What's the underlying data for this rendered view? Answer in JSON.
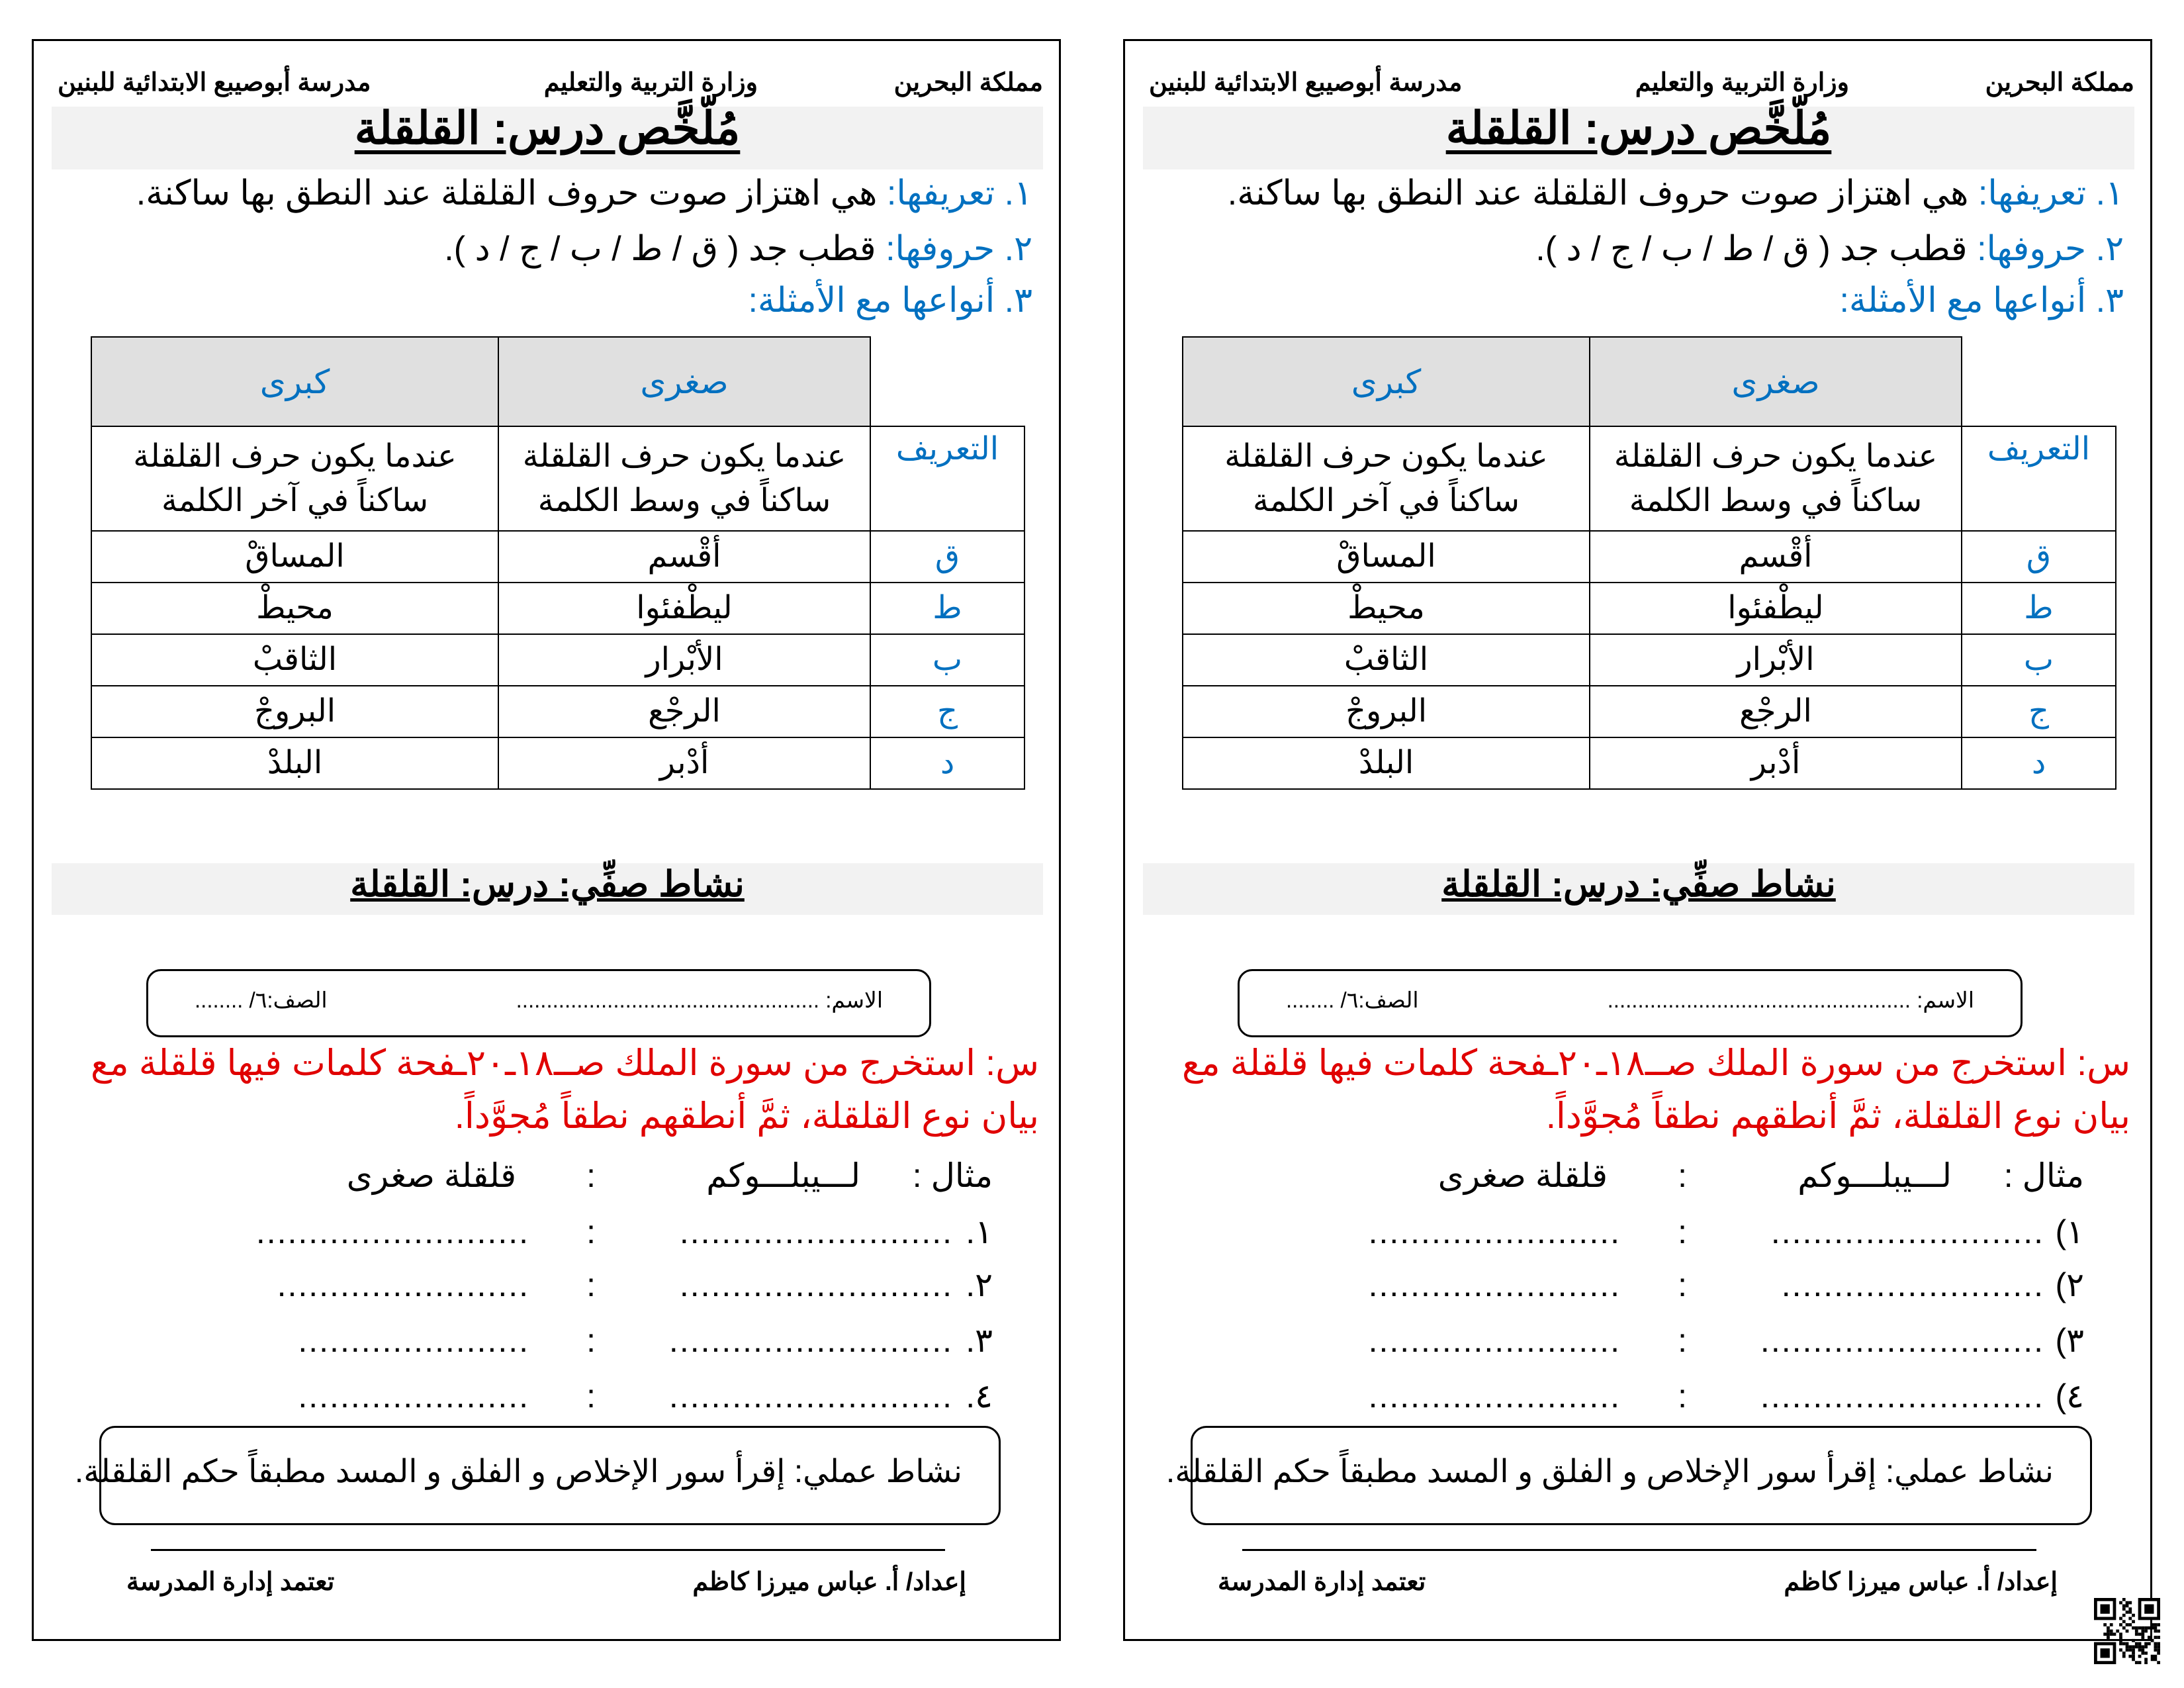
{
  "pages": [
    {
      "header": {
        "kingdom": "مملكة البحرين",
        "ministry": "وزارة التربية والتعليم",
        "school": "مدرسة أبوصيبع الابتدائية للبنين"
      },
      "title": "مُلّخَّص درس: القلقلة",
      "items": [
        {
          "label": "١. تعريفها:",
          "text": " هي اهتزاز صوت حروف القلقلة عند النطق بها ساكنة."
        },
        {
          "label": "٢. حروفها:",
          "text": " قطب جد ( ق / ط / ب / ج / د )."
        },
        {
          "label": "٣. أنواعها مع الأمثلة:",
          "text": ""
        }
      ],
      "table": {
        "headers": [
          "",
          "صغرى",
          "كبرى"
        ],
        "definition": [
          "التعريف",
          "عندما يكون حرف القلقلة ساكناً في وسط الكلمة",
          "عندما يكون حرف القلقلة ساكناً في آخر الكلمة"
        ],
        "rows": [
          [
            "ق",
            "أقْسم",
            "المساقْ"
          ],
          [
            "ط",
            "ليطْفئوا",
            "محيطْ"
          ],
          [
            "ب",
            "الأبْرار",
            "الثاقبْ"
          ],
          [
            "ج",
            "الرجْع",
            "البروجْ"
          ],
          [
            "د",
            "أدْبر",
            "البلدْ"
          ]
        ]
      },
      "activity_title": "نشاط صفِّي: درس: القلقلة",
      "name_box": {
        "name": "الاسم: ..................................................",
        "class": "الصف:٦/ ........"
      },
      "question": [
        "س: استخرج من سورة الملك صــ١٨ـ٢٠ـفحة كلمات فيها قلقلة مع",
        "بيان نوع القلقلة، ثمَّ أنطقهم نطقاً مُجوَّداً."
      ],
      "example": {
        "label": "مثال :",
        "word": "لـــيبلـــوكم",
        "sep": ":",
        "type": "قلقلة صغرى"
      },
      "answers": [
        {
          "num": "١.",
          "left": "..........................",
          "sep": ":",
          "right": ".........................."
        },
        {
          "num": "٢.",
          "left": "........................",
          "sep": ":",
          "right": ".........................."
        },
        {
          "num": "٣.",
          "left": "......................",
          "sep": ":",
          "right": "..........................."
        },
        {
          "num": "٤.",
          "left": "......................",
          "sep": ":",
          "right": "..........................."
        }
      ],
      "practical": "نشاط عملي: إقرأ سور الإخلاص و الفلق و المسد مطبقاً حكم القلقلة.",
      "footer": {
        "author": "إعداد/ أ. عباس ميرزا كاظم",
        "approval": "تعتمد إدارة المدرسة"
      }
    },
    {
      "header": {
        "kingdom": "مملكة البحرين",
        "ministry": "وزارة التربية والتعليم",
        "school": "مدرسة أبوصيبع الابتدائية للبنين"
      },
      "title": "مُلّخَّص درس: القلقلة",
      "items": [
        {
          "label": "١. تعريفها:",
          "text": " هي اهتزاز صوت حروف القلقلة عند النطق بها ساكنة."
        },
        {
          "label": "٢. حروفها:",
          "text": " قطب جد ( ق / ط / ب / ج / د )."
        },
        {
          "label": "٣. أنواعها مع الأمثلة:",
          "text": ""
        }
      ],
      "table": {
        "headers": [
          "",
          "صغرى",
          "كبرى"
        ],
        "definition": [
          "التعريف",
          "عندما يكون حرف القلقلة ساكناً في وسط الكلمة",
          "عندما يكون حرف القلقلة ساكناً في آخر الكلمة"
        ],
        "rows": [
          [
            "ق",
            "أقْسم",
            "المساقْ"
          ],
          [
            "ط",
            "ليطْفئوا",
            "محيطْ"
          ],
          [
            "ب",
            "الأبْرار",
            "الثاقبْ"
          ],
          [
            "ج",
            "الرجْع",
            "البروجْ"
          ],
          [
            "د",
            "أدْبر",
            "البلدْ"
          ]
        ]
      },
      "activity_title": "نشاط صفِّي: درس: القلقلة",
      "name_box": {
        "name": "الاسم: ..................................................",
        "class": "الصف:٦/ ........"
      },
      "question": [
        "س: استخرج من سورة الملك صــ١٨ـ٢٠ـفحة كلمات فيها قلقلة مع",
        "بيان نوع القلقلة، ثمَّ أنطقهم نطقاً مُجوَّداً."
      ],
      "example": {
        "label": "مثال :",
        "word": "لـــيبلـــوكم",
        "sep": ":",
        "type": "قلقلة صغرى"
      },
      "answers": [
        {
          "num": "١)",
          "left": "........................",
          "sep": ":",
          "right": ".........................."
        },
        {
          "num": "٢)",
          "left": "........................",
          "sep": ":",
          "right": "........................."
        },
        {
          "num": "٣)",
          "left": "........................",
          "sep": ":",
          "right": "..........................."
        },
        {
          "num": "٤)",
          "left": "........................",
          "sep": ":",
          "right": "..........................."
        }
      ],
      "practical": "نشاط عملي: إقرأ سور الإخلاص و الفلق و المسد مطبقاً حكم القلقلة.",
      "footer": {
        "author": "إعداد/ أ. عباس ميرزا كاظم",
        "approval": "تعتمد إدارة المدرسة"
      }
    }
  ],
  "qr_code": "qr-code-icon"
}
